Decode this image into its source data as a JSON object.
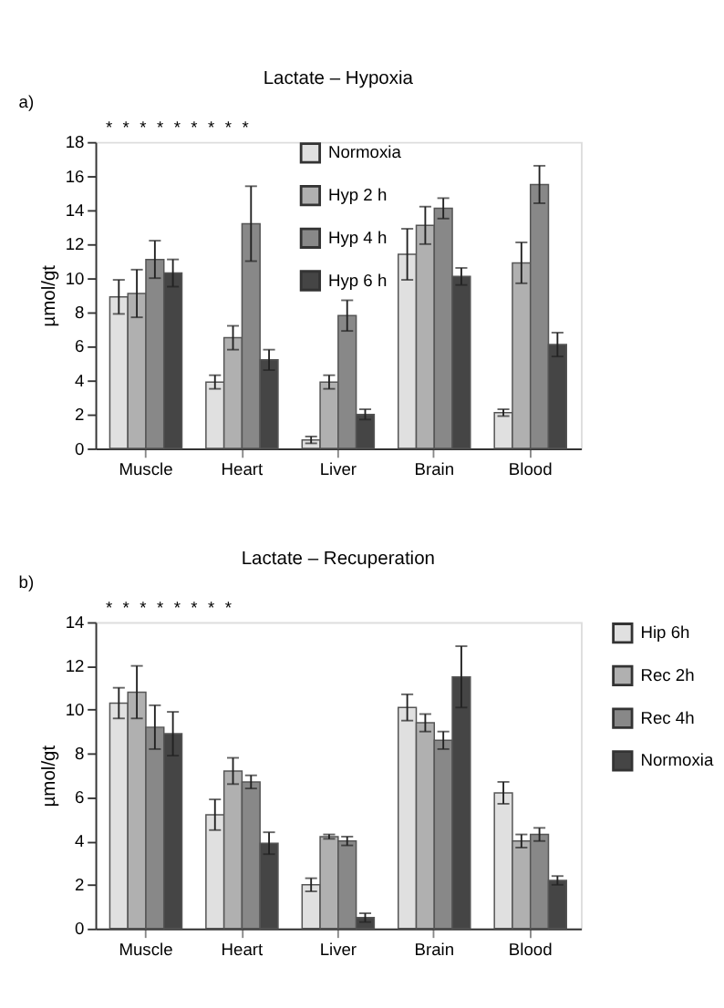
{
  "chart_data": [
    {
      "type": "bar",
      "title": "Lactate – Hypoxia",
      "ylabel": "µmol/gt",
      "categories": [
        "Muscle",
        "Heart",
        "Liver",
        "Brain",
        "Blood"
      ],
      "ylim": [
        0,
        18
      ],
      "yticks": [
        0,
        2,
        4,
        6,
        8,
        10,
        12,
        14,
        16,
        18
      ],
      "grid": false,
      "legend": "top",
      "series": [
        {
          "name": "Normoxia",
          "color": "#e0e0e0",
          "values": [
            8.9,
            3.9,
            0.5,
            11.4,
            2.1
          ],
          "errors": [
            1.0,
            0.4,
            0.2,
            1.5,
            0.2
          ]
        },
        {
          "name": "Hyp 2 h",
          "color": "#b0b0b0",
          "values": [
            9.1,
            6.5,
            3.9,
            13.1,
            10.9
          ],
          "errors": [
            1.4,
            0.7,
            0.4,
            1.1,
            1.2
          ]
        },
        {
          "name": "Hyp 4 h",
          "color": "#888888",
          "values": [
            11.1,
            13.2,
            7.8,
            14.1,
            15.5
          ],
          "errors": [
            1.1,
            2.2,
            0.9,
            0.6,
            1.1
          ]
        },
        {
          "name": "Hyp 6 h",
          "color": "#454545",
          "values": [
            10.3,
            5.2,
            2.0,
            10.1,
            6.1
          ],
          "errors": [
            0.8,
            0.6,
            0.3,
            0.5,
            0.7
          ]
        }
      ],
      "annotations": [
        "a)",
        "*",
        "*",
        "*",
        "*",
        "*",
        "*",
        "*",
        "*",
        "*"
      ]
    },
    {
      "type": "bar",
      "title": "Lactate – Recuperation",
      "ylabel": "µmol/gt",
      "categories": [
        "Muscle",
        "Heart",
        "Liver",
        "Brain",
        "Blood"
      ],
      "ylim": [
        0,
        14
      ],
      "yticks": [
        0,
        2,
        4,
        6,
        8,
        10,
        12,
        14
      ],
      "grid": false,
      "legend": "right",
      "series": [
        {
          "name": "Hip 6h",
          "color": "#e0e0e0",
          "values": [
            10.3,
            5.2,
            2.0,
            10.1,
            6.2
          ],
          "errors": [
            0.7,
            0.7,
            0.3,
            0.6,
            0.5
          ]
        },
        {
          "name": "Rec 2h",
          "color": "#b0b0b0",
          "values": [
            10.8,
            7.2,
            4.2,
            9.4,
            4.0
          ],
          "errors": [
            1.2,
            0.6,
            0.1,
            0.4,
            0.3
          ]
        },
        {
          "name": "Rec 4h",
          "color": "#888888",
          "values": [
            9.2,
            6.7,
            4.0,
            8.6,
            4.3
          ],
          "errors": [
            1.0,
            0.3,
            0.2,
            0.4,
            0.3
          ]
        },
        {
          "name": "Normoxia",
          "color": "#454545",
          "values": [
            8.9,
            3.9,
            0.5,
            11.5,
            2.2
          ],
          "errors": [
            1.0,
            0.5,
            0.2,
            1.4,
            0.2
          ]
        }
      ],
      "annotations": [
        "b)",
        "*",
        "*",
        "*",
        "*",
        "*",
        "*",
        "*",
        "*"
      ]
    }
  ]
}
